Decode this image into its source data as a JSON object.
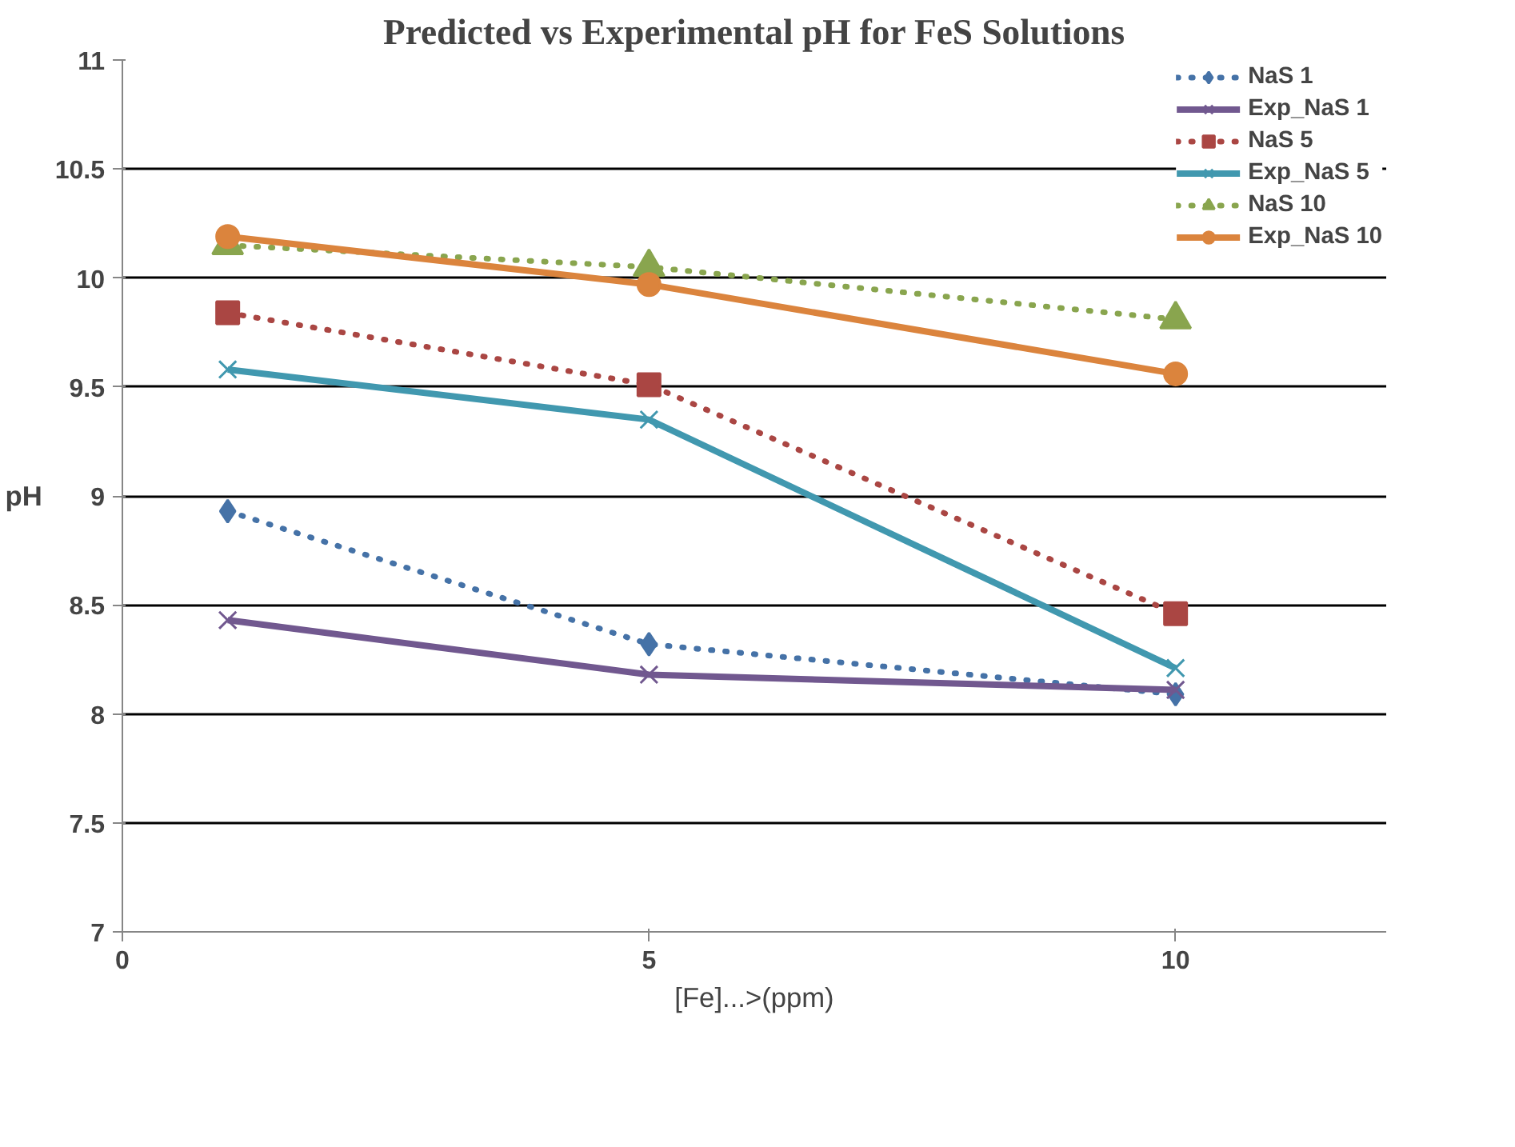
{
  "chart_data": {
    "type": "line",
    "title": "Predicted vs Experimental pH for FeS Solutions",
    "xlabel": "[Fe]...>(ppm)",
    "ylabel": "pH",
    "x": [
      1,
      5,
      10
    ],
    "xlim": [
      0,
      12
    ],
    "xticks": [
      0,
      5,
      10
    ],
    "ylim": [
      7,
      11
    ],
    "yticks": [
      7,
      7.5,
      8,
      8.5,
      9,
      9.5,
      10,
      10.5,
      11
    ],
    "grid": "y",
    "legend": "top right",
    "series": [
      {
        "name": "NaS 1",
        "color": "#4572a7",
        "values": [
          8.93,
          8.32,
          8.09
        ],
        "marker": "diamond",
        "line_style": "dotted"
      },
      {
        "name": "Exp_NaS 1",
        "color": "#71588f",
        "values": [
          8.43,
          8.18,
          8.11
        ],
        "marker": "cross",
        "line_style": "solid"
      },
      {
        "name": "NaS 5",
        "color": "#aa4643",
        "values": [
          9.84,
          9.51,
          8.46
        ],
        "marker": "square",
        "line_style": "dotted"
      },
      {
        "name": "Exp_NaS 5",
        "color": "#4198af",
        "values": [
          9.58,
          9.35,
          8.21
        ],
        "marker": "cross",
        "line_style": "solid"
      },
      {
        "name": "NaS 10",
        "color": "#89a54e",
        "values": [
          10.15,
          10.05,
          9.81
        ],
        "marker": "triangle",
        "line_style": "dotted"
      },
      {
        "name": "Exp_NaS 10",
        "color": "#db843d",
        "values": [
          10.19,
          9.97,
          9.56
        ],
        "marker": "circle",
        "line_style": "solid"
      }
    ]
  }
}
